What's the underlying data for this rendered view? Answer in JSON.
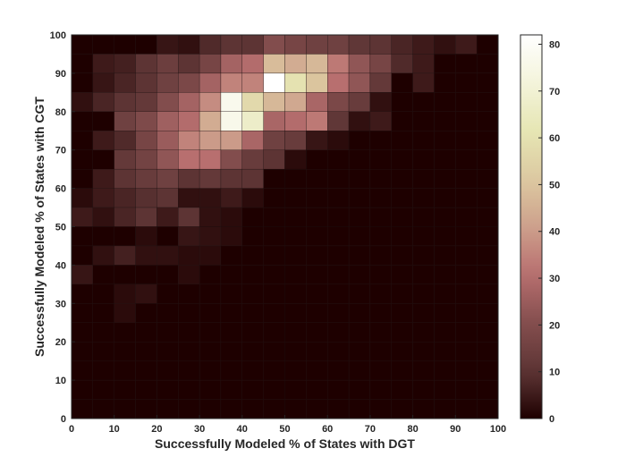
{
  "chart_data": {
    "type": "heatmap",
    "xlabel": "Successfully Modeled % of States with DGT",
    "ylabel": "Successfully Modeled % of States with CGT",
    "xlim": [
      0,
      100
    ],
    "ylim": [
      0,
      100
    ],
    "bin_width": 5,
    "x_ticks": [
      "0",
      "10",
      "20",
      "30",
      "40",
      "50",
      "60",
      "70",
      "80",
      "90",
      "100"
    ],
    "y_ticks": [
      "0",
      "10",
      "20",
      "30",
      "40",
      "50",
      "60",
      "70",
      "80",
      "90",
      "100"
    ],
    "colorbar": {
      "colormap": "pink",
      "range": [
        0,
        82
      ],
      "ticks": [
        "0",
        "10",
        "20",
        "30",
        "40",
        "50",
        "60",
        "70",
        "80"
      ]
    },
    "grid": false,
    "row_order": "top-to-bottom (y 95-100 first)",
    "values": [
      [
        0,
        0,
        0,
        0,
        4,
        3,
        8,
        10,
        10,
        20,
        17,
        15,
        15,
        11,
        10,
        7,
        5,
        3,
        5,
        0
      ],
      [
        0,
        5,
        6,
        10,
        14,
        10,
        17,
        27,
        30,
        48,
        44,
        47,
        33,
        23,
        17,
        8,
        5,
        0,
        0,
        0
      ],
      [
        0,
        4,
        7,
        10,
        15,
        18,
        27,
        35,
        35,
        82,
        60,
        50,
        31,
        23,
        12,
        0,
        5,
        0,
        0,
        0
      ],
      [
        3,
        7,
        10,
        12,
        20,
        27,
        37,
        77,
        57,
        47,
        43,
        28,
        18,
        13,
        3,
        0,
        0,
        0,
        0,
        0
      ],
      [
        0,
        0,
        15,
        19,
        26,
        30,
        44,
        76,
        67,
        28,
        30,
        33,
        11,
        3,
        5,
        0,
        0,
        0,
        0,
        0
      ],
      [
        0,
        5,
        8,
        17,
        25,
        35,
        40,
        40,
        28,
        15,
        13,
        4,
        2,
        0,
        0,
        0,
        0,
        0,
        0,
        0
      ],
      [
        0,
        0,
        12,
        16,
        23,
        31,
        31,
        20,
        13,
        10,
        2,
        0,
        0,
        0,
        0,
        0,
        0,
        0,
        0,
        0
      ],
      [
        0,
        5,
        10,
        13,
        15,
        10,
        12,
        10,
        10,
        0,
        0,
        0,
        0,
        0,
        0,
        0,
        0,
        0,
        0,
        0
      ],
      [
        2,
        5,
        7,
        9,
        10,
        3,
        3,
        5,
        2,
        0,
        0,
        0,
        0,
        0,
        0,
        0,
        0,
        0,
        0,
        0
      ],
      [
        5,
        3,
        7,
        10,
        5,
        10,
        3,
        2,
        0,
        0,
        0,
        0,
        0,
        0,
        0,
        0,
        0,
        0,
        0,
        0
      ],
      [
        0,
        0,
        0,
        2,
        0,
        4,
        3,
        2,
        0,
        0,
        0,
        0,
        0,
        0,
        0,
        0,
        0,
        0,
        0,
        0
      ],
      [
        0,
        3,
        6,
        3,
        3,
        2,
        2,
        0,
        0,
        0,
        0,
        0,
        0,
        0,
        0,
        0,
        0,
        0,
        0,
        0
      ],
      [
        4,
        0,
        0,
        0,
        0,
        2,
        0,
        0,
        0,
        0,
        0,
        0,
        0,
        0,
        0,
        0,
        0,
        0,
        0,
        0
      ],
      [
        0,
        0,
        2,
        3,
        0,
        0,
        0,
        0,
        0,
        0,
        0,
        0,
        0,
        0,
        0,
        0,
        0,
        0,
        0,
        0
      ],
      [
        0,
        0,
        2,
        0,
        0,
        0,
        0,
        0,
        0,
        0,
        0,
        0,
        0,
        0,
        0,
        0,
        0,
        0,
        0,
        0
      ],
      [
        0,
        0,
        0,
        0,
        0,
        0,
        0,
        0,
        0,
        0,
        0,
        0,
        0,
        0,
        0,
        0,
        0,
        0,
        0,
        0
      ],
      [
        0,
        0,
        0,
        0,
        0,
        0,
        0,
        0,
        0,
        0,
        0,
        0,
        0,
        0,
        0,
        0,
        0,
        0,
        0,
        0
      ],
      [
        0,
        0,
        0,
        0,
        0,
        0,
        0,
        0,
        0,
        0,
        0,
        0,
        0,
        0,
        0,
        0,
        0,
        0,
        0,
        0
      ],
      [
        0,
        0,
        0,
        0,
        0,
        0,
        0,
        0,
        0,
        0,
        0,
        0,
        0,
        0,
        0,
        0,
        0,
        0,
        0,
        0
      ],
      [
        0,
        0,
        0,
        0,
        0,
        0,
        0,
        0,
        0,
        0,
        0,
        0,
        0,
        0,
        0,
        0,
        0,
        0,
        0,
        0
      ]
    ]
  }
}
